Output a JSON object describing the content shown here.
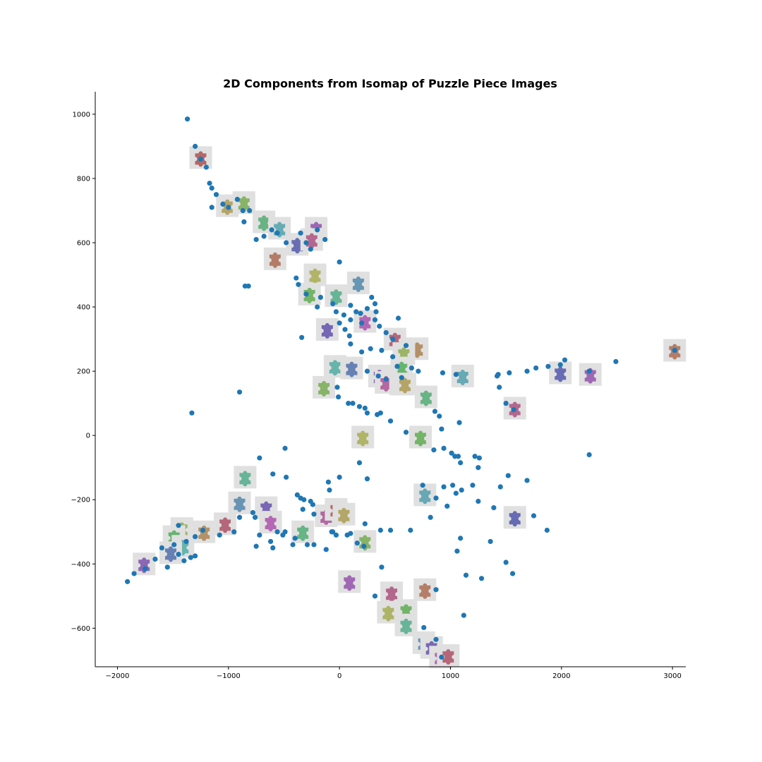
{
  "chart_data": {
    "type": "scatter",
    "title": "2D Components from Isomap of Puzzle Piece Images",
    "xlabel": "",
    "ylabel": "",
    "xlim": [
      -2200,
      3120
    ],
    "ylim": [
      -720,
      1070
    ],
    "xticks": [
      -2000,
      -1000,
      0,
      1000,
      2000,
      3000
    ],
    "yticks": [
      -600,
      -400,
      -200,
      0,
      200,
      400,
      600,
      800,
      1000
    ],
    "grid": false,
    "point_color": "#1f77b4",
    "thumbnail_color": "#e0e0e0",
    "series": [
      {
        "points": [
          [
            -1370,
            985
          ],
          [
            -1300,
            900
          ],
          [
            -1250,
            860
          ],
          [
            -1200,
            835
          ],
          [
            -1170,
            785
          ],
          [
            -1150,
            770
          ],
          [
            -1110,
            750
          ],
          [
            -1150,
            710
          ],
          [
            -1050,
            720
          ],
          [
            -1000,
            710
          ],
          [
            -920,
            735
          ],
          [
            -870,
            700
          ],
          [
            -860,
            665
          ],
          [
            -810,
            700
          ],
          [
            -750,
            610
          ],
          [
            -680,
            620
          ],
          [
            -610,
            640
          ],
          [
            -560,
            630
          ],
          [
            -480,
            600
          ],
          [
            -350,
            630
          ],
          [
            -300,
            600
          ],
          [
            -260,
            580
          ],
          [
            -200,
            640
          ],
          [
            -130,
            610
          ],
          [
            0,
            540
          ],
          [
            -820,
            465
          ],
          [
            -850,
            465
          ],
          [
            -390,
            490
          ],
          [
            -370,
            470
          ],
          [
            -300,
            440
          ],
          [
            -200,
            400
          ],
          [
            -170,
            430
          ],
          [
            -60,
            410
          ],
          [
            -30,
            385
          ],
          [
            40,
            375
          ],
          [
            100,
            360
          ],
          [
            100,
            405
          ],
          [
            150,
            385
          ],
          [
            190,
            380
          ],
          [
            200,
            350
          ],
          [
            250,
            395
          ],
          [
            290,
            430
          ],
          [
            320,
            410
          ],
          [
            330,
            385
          ],
          [
            320,
            360
          ],
          [
            360,
            340
          ],
          [
            420,
            320
          ],
          [
            480,
            300
          ],
          [
            530,
            365
          ],
          [
            -340,
            305
          ],
          [
            0,
            350
          ],
          [
            50,
            330
          ],
          [
            90,
            310
          ],
          [
            100,
            285
          ],
          [
            200,
            260
          ],
          [
            280,
            270
          ],
          [
            380,
            265
          ],
          [
            480,
            245
          ],
          [
            600,
            280
          ],
          [
            520,
            215
          ],
          [
            650,
            210
          ],
          [
            710,
            200
          ],
          [
            250,
            200
          ],
          [
            350,
            185
          ],
          [
            420,
            175
          ],
          [
            560,
            180
          ],
          [
            -900,
            135
          ],
          [
            -20,
            150
          ],
          [
            -10,
            120
          ],
          [
            80,
            100
          ],
          [
            120,
            100
          ],
          [
            180,
            90
          ],
          [
            230,
            85
          ],
          [
            250,
            70
          ],
          [
            340,
            65
          ],
          [
            370,
            70
          ],
          [
            460,
            45
          ],
          [
            600,
            10
          ],
          [
            860,
            75
          ],
          [
            900,
            60
          ],
          [
            920,
            20
          ],
          [
            1080,
            40
          ],
          [
            -1330,
            70
          ],
          [
            930,
            195
          ],
          [
            1050,
            190
          ],
          [
            1420,
            185
          ],
          [
            1430,
            190
          ],
          [
            1440,
            150
          ],
          [
            1530,
            195
          ],
          [
            1690,
            200
          ],
          [
            1770,
            210
          ],
          [
            1880,
            215
          ],
          [
            1990,
            220
          ],
          [
            2030,
            235
          ],
          [
            2250,
            200
          ],
          [
            2490,
            230
          ],
          [
            1570,
            80
          ],
          [
            3020,
            265
          ],
          [
            1500,
            100
          ],
          [
            -490,
            -40
          ],
          [
            -720,
            -70
          ],
          [
            -600,
            -120
          ],
          [
            -480,
            -130
          ],
          [
            -100,
            -145
          ],
          [
            -90,
            -170
          ],
          [
            0,
            -130
          ],
          [
            180,
            -85
          ],
          [
            250,
            -135
          ],
          [
            -380,
            -185
          ],
          [
            -350,
            -195
          ],
          [
            -320,
            -200
          ],
          [
            -330,
            -230
          ],
          [
            -260,
            -205
          ],
          [
            -240,
            -215
          ],
          [
            -230,
            -245
          ],
          [
            -70,
            -300
          ],
          [
            100,
            -305
          ],
          [
            230,
            -275
          ],
          [
            370,
            -295
          ],
          [
            460,
            -295
          ],
          [
            640,
            -295
          ],
          [
            750,
            -155
          ],
          [
            820,
            -255
          ],
          [
            870,
            -195
          ],
          [
            940,
            -160
          ],
          [
            970,
            -220
          ],
          [
            1020,
            -155
          ],
          [
            1050,
            -180
          ],
          [
            1100,
            -170
          ],
          [
            1200,
            -155
          ],
          [
            1250,
            -205
          ],
          [
            1390,
            -225
          ],
          [
            1450,
            -160
          ],
          [
            1520,
            -125
          ],
          [
            1690,
            -140
          ],
          [
            1750,
            -250
          ],
          [
            1870,
            -295
          ],
          [
            1360,
            -330
          ],
          [
            1500,
            -395
          ],
          [
            1560,
            -430
          ],
          [
            1060,
            -360
          ],
          [
            1090,
            -320
          ],
          [
            1140,
            -435
          ],
          [
            1280,
            -445
          ],
          [
            1120,
            -560
          ],
          [
            380,
            -410
          ],
          [
            320,
            -500
          ],
          [
            870,
            -480
          ],
          [
            760,
            -598
          ],
          [
            870,
            -635
          ],
          [
            920,
            -690
          ],
          [
            1010,
            -55
          ],
          [
            1040,
            -65
          ],
          [
            1070,
            -65
          ],
          [
            1090,
            -85
          ],
          [
            1220,
            -65
          ],
          [
            1260,
            -70
          ],
          [
            1250,
            -100
          ],
          [
            2250,
            -60
          ],
          [
            940,
            -40
          ],
          [
            850,
            -45
          ],
          [
            -900,
            -255
          ],
          [
            -780,
            -240
          ],
          [
            -760,
            -255
          ],
          [
            -720,
            -310
          ],
          [
            -750,
            -345
          ],
          [
            -600,
            -350
          ],
          [
            -490,
            -300
          ],
          [
            -510,
            -310
          ],
          [
            -420,
            -340
          ],
          [
            -400,
            -320
          ],
          [
            -290,
            -340
          ],
          [
            -230,
            -340
          ],
          [
            -120,
            -355
          ],
          [
            -30,
            -310
          ],
          [
            -60,
            -300
          ],
          [
            70,
            -310
          ],
          [
            160,
            -335
          ],
          [
            220,
            -345
          ],
          [
            -620,
            -330
          ],
          [
            -560,
            -300
          ],
          [
            -1080,
            -310
          ],
          [
            -950,
            -300
          ],
          [
            -1300,
            -375
          ],
          [
            -1340,
            -380
          ],
          [
            -1400,
            -390
          ],
          [
            -1450,
            -370
          ],
          [
            -1550,
            -410
          ],
          [
            -1600,
            -350
          ],
          [
            -1660,
            -385
          ],
          [
            -1750,
            -415
          ],
          [
            -1850,
            -430
          ],
          [
            -1910,
            -455
          ],
          [
            -1230,
            -295
          ],
          [
            -1300,
            -315
          ],
          [
            -1380,
            -330
          ],
          [
            -1490,
            -340
          ],
          [
            -1450,
            -280
          ]
        ]
      }
    ],
    "thumbnails": [
      [
        -1250,
        865
      ],
      [
        -1010,
        715
      ],
      [
        -860,
        725
      ],
      [
        -680,
        665
      ],
      [
        -540,
        645
      ],
      [
        -380,
        595
      ],
      [
        -210,
        645
      ],
      [
        -250,
        610
      ],
      [
        -580,
        550
      ],
      [
        -220,
        500
      ],
      [
        -270,
        440
      ],
      [
        -30,
        435
      ],
      [
        170,
        475
      ],
      [
        -110,
        330
      ],
      [
        230,
        355
      ],
      [
        500,
        300
      ],
      [
        700,
        270
      ],
      [
        580,
        255
      ],
      [
        560,
        210
      ],
      [
        -40,
        215
      ],
      [
        110,
        210
      ],
      [
        360,
        185
      ],
      [
        420,
        165
      ],
      [
        550,
        160
      ],
      [
        590,
        160
      ],
      [
        -140,
        150
      ],
      [
        780,
        120
      ],
      [
        1110,
        185
      ],
      [
        1990,
        195
      ],
      [
        2260,
        190
      ],
      [
        1580,
        85
      ],
      [
        3020,
        265
      ],
      [
        210,
        -5
      ],
      [
        730,
        -5
      ],
      [
        -850,
        -130
      ],
      [
        -900,
        -210
      ],
      [
        -660,
        -225
      ],
      [
        -620,
        -270
      ],
      [
        -1030,
        -275
      ],
      [
        -1220,
        -300
      ],
      [
        -1420,
        -290
      ],
      [
        -1490,
        -315
      ],
      [
        -1410,
        -345
      ],
      [
        -1520,
        -365
      ],
      [
        -1760,
        -400
      ],
      [
        -120,
        -250
      ],
      [
        -30,
        -230
      ],
      [
        40,
        -245
      ],
      [
        230,
        -330
      ],
      [
        -330,
        -300
      ],
      [
        770,
        -185
      ],
      [
        1580,
        -255
      ],
      [
        90,
        -455
      ],
      [
        470,
        -490
      ],
      [
        770,
        -480
      ],
      [
        440,
        -550
      ],
      [
        600,
        -545
      ],
      [
        600,
        -590
      ],
      [
        760,
        -645
      ],
      [
        830,
        -660
      ],
      [
        910,
        -690
      ],
      [
        980,
        -685
      ]
    ]
  }
}
